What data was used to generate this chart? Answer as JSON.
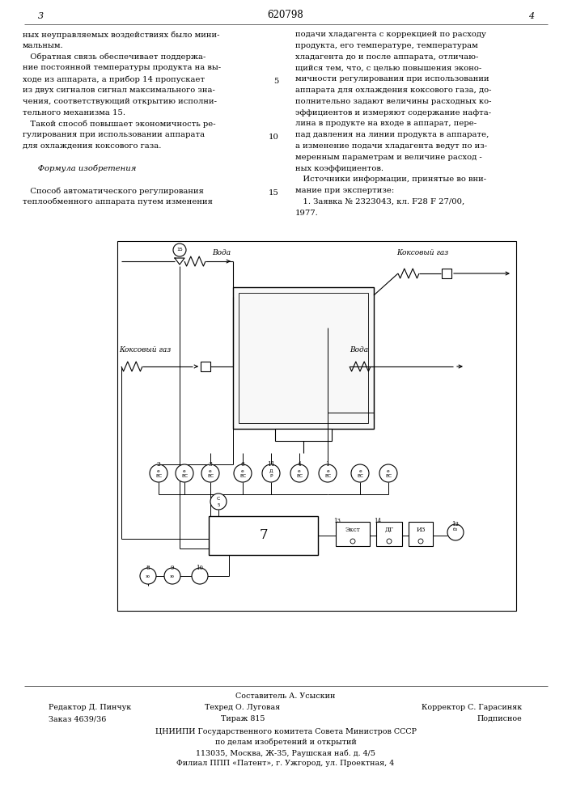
{
  "bg_color": "#ffffff",
  "page_left": "3",
  "page_right": "4",
  "patent_number": "620798",
  "left_col_lines": [
    "ных неуправляемых воздействиях было мини-",
    "мальным.",
    "   Обратная связь обеспечивает поддержа-",
    "ние постоянной температуры продукта на вы-",
    "ходе из аппарата, а прибор 14 пропускает",
    "из двух сигналов сигнал максимального зна-",
    "чения, соответствующий открытию исполни-",
    "тельного механизма 15.",
    "   Такой способ повышает экономичность ре-",
    "гулирования при использовании аппарата",
    "для охлаждения коксового газа.",
    "",
    "      Формула изобретения",
    "",
    "   Способ автоматического регулирования",
    "теплообменного аппарата путем изменения"
  ],
  "right_col_lines": [
    "подачи хладагента с коррекцией по расходу",
    "продукта, его температуре, температурам",
    "хладагента до и после аппарата, отличаю-",
    "щийся тем, что, с целью повышения эконо-",
    "мичности регулирования при использовании",
    "аппарата для охлаждения коксового газа, до-",
    "полнительно задают величины расходных ко-",
    "эффициентов и измеряют содержание нафта-",
    "лина в продукте на входе в аппарат, пере-",
    "пад давления на линии продукта в аппарате,",
    "а изменение подачи хладагента ведут по из-",
    "меренным параметрам и величине расход -",
    "ных коэффициентов.",
    "   Источники информации, принятые во вни-",
    "мание при экспертизе:",
    "   1. Заявка № 2323043, кл. F28 F 27/00,",
    "1977."
  ],
  "line_numbers": [
    "",
    "",
    "",
    "",
    "5",
    "",
    "",
    "",
    "",
    "10",
    "",
    "",
    "",
    "",
    "15",
    "",
    ""
  ],
  "footer_composer": "Составитель А. Усыскин",
  "footer_editor_lbl": "Редактор Д. Пинчук",
  "footer_tech_lbl": "Техред О. Луговая",
  "footer_corr_lbl": "Корректор С. Гарасиняк",
  "footer_order_lbl": "Заказ 4639/36",
  "footer_circ_lbl": "Тираж 815",
  "footer_sign_lbl": "Подписное",
  "footer_org": "ЦНИИПИ Государственного комитета Совета Министров СССР",
  "footer_dept": "по делам изобретений и открытий",
  "footer_addr1": "113035, Москва, Ж-35, Раушская наб. д. 4/5",
  "footer_addr2": "Филиал ППП «Патент», г. Ужгород, ул. Проектная, 4"
}
